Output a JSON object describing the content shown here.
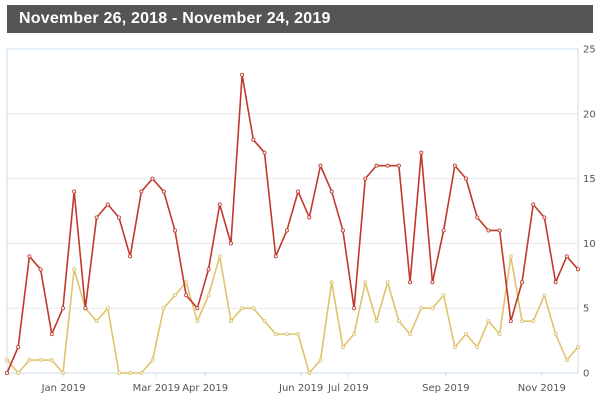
{
  "header": {
    "title": "November 26, 2018 - November 24, 2019"
  },
  "chart_data": {
    "type": "line",
    "x_tick_labels": [
      "Jan 2019",
      "Mar 2019",
      "Apr 2019",
      "Jun 2019",
      "Jul 2019",
      "Sep 2019",
      "Nov 2019"
    ],
    "x_tick_dates": [
      "2019-01-01",
      "2019-03-01",
      "2019-04-01",
      "2019-06-01",
      "2019-07-01",
      "2019-09-01",
      "2019-11-01"
    ],
    "x_start": "2018-11-26",
    "x_end": "2019-11-24",
    "y_ticks": [
      0,
      5,
      10,
      15,
      20,
      25
    ],
    "ylim": [
      0,
      25
    ],
    "y_axis_side": "right",
    "grid": true,
    "colors": {
      "series1": "#c0392b",
      "series2": "#e0c46c",
      "axis_text": "#555555",
      "grid": "#e8e8e8",
      "frame": "#c8dce8"
    },
    "series": [
      {
        "values": [
          0,
          2,
          9,
          8,
          3,
          5,
          14,
          5,
          12,
          13,
          12,
          9,
          14,
          15,
          14,
          11,
          6,
          5,
          8,
          13,
          10,
          23,
          18,
          17,
          9,
          11,
          14,
          12,
          16,
          14,
          11,
          5,
          15,
          16,
          16,
          16,
          7,
          17,
          7,
          11,
          16,
          15,
          12,
          11,
          11,
          4,
          7,
          13,
          12,
          7,
          9,
          8
        ]
      },
      {
        "values": [
          1,
          0,
          1,
          1,
          1,
          0,
          8,
          5,
          4,
          5,
          0,
          0,
          0,
          1,
          5,
          6,
          7,
          4,
          6,
          9,
          4,
          5,
          5,
          4,
          3,
          3,
          3,
          0,
          1,
          7,
          2,
          3,
          7,
          4,
          7,
          4,
          3,
          5,
          5,
          6,
          2,
          3,
          2,
          4,
          3,
          9,
          4,
          4,
          6,
          3,
          1,
          2
        ]
      }
    ]
  }
}
